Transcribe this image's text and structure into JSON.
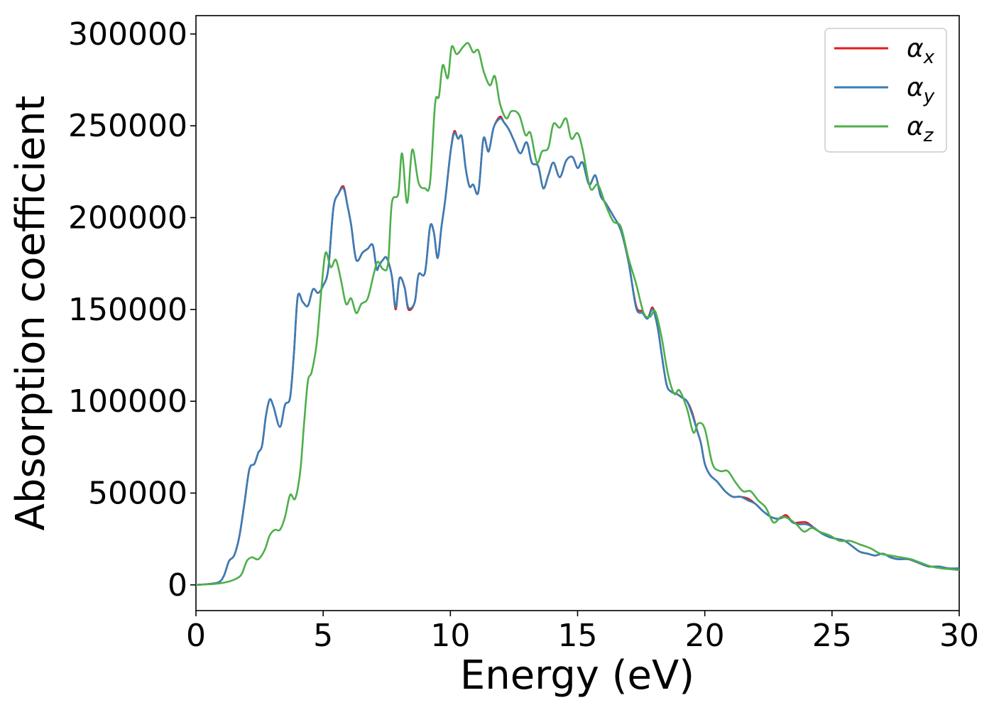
{
  "chart_data": {
    "type": "line",
    "xlabel": "Energy (eV)",
    "ylabel": "Absorption coefficient",
    "xlim": [
      0,
      30
    ],
    "ylim": [
      -14000,
      310000
    ],
    "xticks": [
      0,
      5,
      10,
      15,
      20,
      25,
      30
    ],
    "xtick_labels": [
      "0",
      "5",
      "10",
      "15",
      "20",
      "25",
      "30"
    ],
    "yticks": [
      0,
      50000,
      100000,
      150000,
      200000,
      250000,
      300000
    ],
    "ytick_labels": [
      "0",
      "50000",
      "100000",
      "150000",
      "200000",
      "250000",
      "300000"
    ],
    "grid": false,
    "legend_position": "top-right",
    "series": [
      {
        "name": "α_x",
        "legend_base": "α",
        "legend_sub": "x",
        "color": "#e41a1c",
        "x": [
          0,
          0.5,
          0.9,
          1.1,
          1.3,
          1.5,
          1.7,
          1.9,
          2.1,
          2.3,
          2.45,
          2.6,
          2.75,
          2.9,
          3.05,
          3.3,
          3.5,
          3.7,
          3.85,
          4.0,
          4.2,
          4.4,
          4.6,
          4.8,
          5.0,
          5.2,
          5.4,
          5.6,
          5.8,
          5.95,
          6.1,
          6.3,
          6.55,
          6.75,
          6.95,
          7.1,
          7.2,
          7.35,
          7.5,
          7.7,
          7.85,
          8.0,
          8.2,
          8.35,
          8.6,
          8.75,
          9.0,
          9.2,
          9.35,
          9.5,
          9.65,
          9.8,
          10.0,
          10.15,
          10.3,
          10.45,
          10.6,
          10.75,
          10.9,
          11.1,
          11.3,
          11.5,
          11.7,
          11.95,
          12.1,
          12.3,
          12.5,
          12.75,
          13.0,
          13.2,
          13.45,
          13.65,
          13.85,
          14.05,
          14.3,
          14.55,
          14.8,
          15.0,
          15.2,
          15.45,
          15.7,
          15.9,
          16.1,
          16.4,
          16.7,
          17.0,
          17.3,
          17.55,
          17.75,
          17.95,
          18.15,
          18.3,
          18.5,
          18.7,
          18.9,
          19.1,
          19.3,
          19.5,
          19.7,
          19.85,
          20.0,
          20.2,
          20.5,
          20.8,
          21.1,
          21.4,
          21.7,
          22.0,
          22.3,
          22.6,
          22.9,
          23.2,
          23.45,
          23.7,
          24.0,
          24.3,
          24.6,
          24.9,
          25.2,
          25.5,
          25.8,
          26.1,
          26.4,
          26.7,
          27.0,
          27.3,
          27.6,
          28.0,
          28.4,
          28.8,
          29.2,
          29.6,
          30.0
        ],
        "y": [
          0,
          500,
          1500,
          5000,
          13000,
          16000,
          26000,
          44000,
          63000,
          66000,
          72000,
          76000,
          92000,
          101000,
          97000,
          86000,
          98000,
          102000,
          126000,
          157000,
          154000,
          152000,
          161000,
          159000,
          163000,
          172000,
          205000,
          213000,
          217000,
          207000,
          196000,
          177000,
          181000,
          183000,
          185000,
          172000,
          174000,
          177000,
          178000,
          168000,
          150000,
          167000,
          162000,
          150000,
          154000,
          169000,
          170000,
          195000,
          192000,
          178000,
          195000,
          210000,
          235000,
          247000,
          243000,
          244000,
          227000,
          217000,
          218000,
          214000,
          243000,
          236000,
          249000,
          255000,
          252000,
          248000,
          242000,
          235000,
          241000,
          230000,
          228000,
          216000,
          223000,
          230000,
          222000,
          231000,
          233000,
          227000,
          230000,
          218000,
          223000,
          212000,
          208000,
          201000,
          193000,
          176000,
          152000,
          149000,
          145000,
          151000,
          140000,
          126000,
          109000,
          105000,
          104000,
          102000,
          100000,
          94000,
          84000,
          77000,
          66000,
          60000,
          56000,
          51000,
          48000,
          48000,
          47000,
          44000,
          40000,
          37000,
          36000,
          38000,
          34000,
          34000,
          34000,
          31000,
          28000,
          26000,
          25000,
          24000,
          21000,
          18000,
          17000,
          16000,
          17000,
          15000,
          14000,
          14000,
          12000,
          10000,
          10000,
          9000,
          9000
        ]
      },
      {
        "name": "α_y",
        "legend_base": "α",
        "legend_sub": "y",
        "color": "#377eb8",
        "x": [
          0,
          0.5,
          0.9,
          1.1,
          1.3,
          1.5,
          1.7,
          1.9,
          2.1,
          2.3,
          2.45,
          2.6,
          2.75,
          2.9,
          3.05,
          3.3,
          3.5,
          3.7,
          3.85,
          4.0,
          4.2,
          4.4,
          4.6,
          4.8,
          5.0,
          5.2,
          5.4,
          5.6,
          5.8,
          5.95,
          6.1,
          6.3,
          6.55,
          6.75,
          6.95,
          7.1,
          7.2,
          7.35,
          7.5,
          7.7,
          7.85,
          8.0,
          8.2,
          8.35,
          8.6,
          8.75,
          9.0,
          9.2,
          9.35,
          9.5,
          9.65,
          9.8,
          10.0,
          10.15,
          10.3,
          10.45,
          10.6,
          10.75,
          10.9,
          11.1,
          11.3,
          11.5,
          11.7,
          11.95,
          12.1,
          12.3,
          12.5,
          12.75,
          13.0,
          13.2,
          13.45,
          13.65,
          13.85,
          14.05,
          14.3,
          14.55,
          14.8,
          15.0,
          15.2,
          15.45,
          15.7,
          15.9,
          16.1,
          16.4,
          16.7,
          17.0,
          17.3,
          17.55,
          17.75,
          17.95,
          18.15,
          18.3,
          18.5,
          18.7,
          18.9,
          19.1,
          19.3,
          19.5,
          19.7,
          19.85,
          20.0,
          20.2,
          20.5,
          20.8,
          21.1,
          21.4,
          21.7,
          22.0,
          22.3,
          22.6,
          22.9,
          23.2,
          23.45,
          23.7,
          24.0,
          24.3,
          24.6,
          24.9,
          25.2,
          25.5,
          25.8,
          26.1,
          26.4,
          26.7,
          27.0,
          27.3,
          27.6,
          28.0,
          28.4,
          28.8,
          29.2,
          29.6,
          30.0
        ],
        "y": [
          0,
          500,
          1500,
          5000,
          13000,
          16000,
          26000,
          44000,
          63000,
          66000,
          72000,
          76000,
          92000,
          101000,
          97000,
          86000,
          98000,
          102000,
          126000,
          157000,
          154000,
          152000,
          161000,
          159000,
          163000,
          172000,
          205000,
          213000,
          216000,
          207000,
          196000,
          177000,
          181000,
          183000,
          185000,
          172000,
          174000,
          177000,
          178000,
          168000,
          151000,
          167000,
          162000,
          151000,
          154000,
          169000,
          170000,
          195000,
          192000,
          178000,
          195000,
          210000,
          235000,
          246000,
          243000,
          244000,
          227000,
          217000,
          218000,
          214000,
          243000,
          236000,
          249000,
          254000,
          252000,
          248000,
          242000,
          235000,
          241000,
          230000,
          228000,
          216000,
          223000,
          230000,
          222000,
          231000,
          233000,
          227000,
          230000,
          218000,
          223000,
          212000,
          208000,
          201000,
          193000,
          176000,
          151000,
          148000,
          145000,
          150000,
          140000,
          126000,
          109000,
          105000,
          104000,
          102000,
          100000,
          93000,
          84000,
          77000,
          66000,
          60000,
          56000,
          51000,
          48000,
          48000,
          46000,
          44000,
          40000,
          37000,
          36000,
          37000,
          34000,
          33000,
          33000,
          31000,
          28000,
          26000,
          25000,
          24000,
          21000,
          18000,
          17000,
          16000,
          17000,
          15000,
          14000,
          14000,
          12000,
          10000,
          10000,
          9000,
          9000
        ]
      },
      {
        "name": "α_z",
        "legend_base": "α",
        "legend_sub": "z",
        "color": "#4daf4a",
        "x": [
          0,
          0.7,
          1.2,
          1.6,
          1.8,
          2.0,
          2.2,
          2.45,
          2.7,
          2.9,
          3.1,
          3.3,
          3.5,
          3.7,
          3.9,
          4.1,
          4.25,
          4.4,
          4.55,
          4.75,
          4.95,
          5.1,
          5.3,
          5.5,
          5.7,
          5.9,
          6.1,
          6.3,
          6.5,
          6.75,
          7.0,
          7.15,
          7.35,
          7.55,
          7.7,
          7.95,
          8.1,
          8.3,
          8.5,
          8.75,
          9.0,
          9.2,
          9.4,
          9.55,
          9.7,
          9.9,
          10.05,
          10.25,
          10.5,
          10.7,
          10.9,
          11.1,
          11.3,
          11.55,
          11.75,
          11.95,
          12.2,
          12.4,
          12.7,
          12.95,
          13.15,
          13.4,
          13.6,
          13.85,
          14.05,
          14.3,
          14.55,
          14.75,
          15.0,
          15.2,
          15.5,
          15.8,
          16.1,
          16.4,
          16.7,
          17.0,
          17.3,
          17.6,
          17.85,
          18.05,
          18.3,
          18.55,
          18.8,
          19.0,
          19.3,
          19.55,
          19.75,
          20.0,
          20.3,
          20.6,
          20.9,
          21.2,
          21.5,
          21.8,
          22.1,
          22.4,
          22.7,
          23.0,
          23.3,
          23.6,
          23.9,
          24.2,
          24.5,
          24.9,
          25.3,
          25.7,
          26.1,
          26.5,
          26.9,
          27.3,
          27.7,
          28.1,
          28.5,
          28.9,
          29.3,
          29.7,
          30.0
        ],
        "y": [
          0,
          500,
          1500,
          3500,
          6000,
          13000,
          15000,
          14000,
          19000,
          27000,
          30000,
          30000,
          37000,
          49000,
          47000,
          62000,
          88000,
          111000,
          116000,
          132000,
          164000,
          181000,
          173000,
          177000,
          166000,
          153000,
          156000,
          148000,
          153000,
          156000,
          170000,
          176000,
          172000,
          175000,
          208000,
          213000,
          235000,
          208000,
          237000,
          219000,
          216000,
          219000,
          262000,
          266000,
          283000,
          276000,
          293000,
          289000,
          293000,
          295000,
          290000,
          291000,
          280000,
          272000,
          277000,
          262000,
          254000,
          258000,
          256000,
          245000,
          246000,
          230000,
          236000,
          238000,
          251000,
          249000,
          254000,
          243000,
          246000,
          237000,
          216000,
          218000,
          207000,
          198000,
          195000,
          178000,
          164000,
          148000,
          146000,
          149000,
          135000,
          115000,
          104000,
          106000,
          96000,
          83000,
          88000,
          85000,
          66000,
          62000,
          62000,
          56000,
          51000,
          51000,
          46000,
          42000,
          34000,
          37000,
          36000,
          33000,
          29000,
          31000,
          29000,
          27000,
          24000,
          24000,
          22000,
          20000,
          17000,
          16000,
          15000,
          14000,
          12000,
          10000,
          9000,
          8500,
          8000
        ]
      }
    ]
  }
}
